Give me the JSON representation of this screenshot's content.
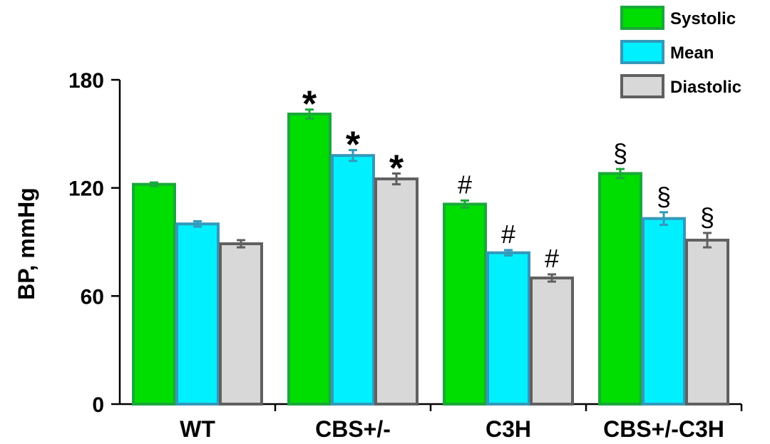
{
  "chart_data": {
    "type": "bar",
    "ylabel": "BP, mmHg",
    "xlabel": "",
    "ylim": [
      0,
      180
    ],
    "yticks": [
      0,
      60,
      120,
      180
    ],
    "categories": [
      "WT",
      "CBS+/-",
      "C3H",
      "CBS+/-C3H"
    ],
    "series": [
      {
        "name": "Systolic",
        "color": "#00dd00",
        "edge": "#1aa83a",
        "values": [
          122,
          161,
          111,
          128
        ],
        "errors": [
          1,
          2.5,
          2,
          2.5
        ],
        "annotations": [
          "",
          "*",
          "#",
          "§"
        ]
      },
      {
        "name": "Mean",
        "color": "#00f0ff",
        "edge": "#3399bb",
        "values": [
          100,
          138,
          84,
          103
        ],
        "errors": [
          1.5,
          3,
          1.5,
          3.5
        ],
        "annotations": [
          "",
          "*",
          "#",
          "§"
        ]
      },
      {
        "name": "Diastolic",
        "color": "#d8d8d8",
        "edge": "#606060",
        "values": [
          89,
          125,
          70,
          91
        ],
        "errors": [
          2,
          3,
          2,
          4
        ],
        "annotations": [
          "",
          "*",
          "#",
          "§"
        ]
      }
    ],
    "legend_position": "top-right",
    "grid": false
  }
}
